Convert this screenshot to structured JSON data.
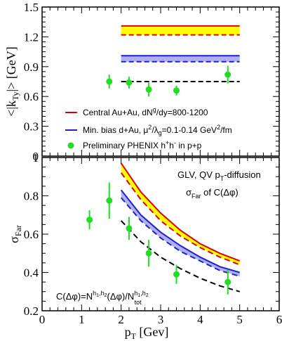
{
  "chart_data": [
    {
      "type": "line",
      "panel": "top",
      "ylabel": "<|kTy|> [GeV]",
      "ylim": [
        0,
        1.5
      ],
      "xlim": [
        0,
        6
      ],
      "yticks": [
        "0",
        "0.3",
        "0.6",
        "0.9",
        "1.2",
        "1.5"
      ],
      "legend": [
        {
          "name": "central",
          "text": "Central Au+Au, dN^g/dy=800-1200",
          "color": "#e00000"
        },
        {
          "name": "minbias",
          "text": "Min. bias d+Au, μ²/λg=0.1-0.14 GeV²/fm",
          "color": "#2020d0"
        },
        {
          "name": "phenix",
          "text": "Preliminary PHENIX h+h- in p+p",
          "color": "#22dd22"
        }
      ],
      "bands": [
        {
          "name": "central-band",
          "x": [
            2,
            5
          ],
          "y_low": 1.22,
          "y_high": 1.31,
          "fill": "#ffff00",
          "line": "#e00000",
          "dashed_y": 1.22
        },
        {
          "name": "minbias-band",
          "x": [
            2,
            5
          ],
          "y_low": 0.95,
          "y_high": 1.01,
          "fill": "#b0b0f0",
          "line": "#2020d0",
          "dashed_y": 0.95
        }
      ],
      "pp_line": {
        "x": [
          2,
          5
        ],
        "y": 0.75,
        "color": "#000000"
      },
      "points": [
        {
          "x": 1.7,
          "y": 0.75,
          "err": 0.07
        },
        {
          "x": 2.2,
          "y": 0.74,
          "err": 0.06
        },
        {
          "x": 2.7,
          "y": 0.67,
          "err": 0.07
        },
        {
          "x": 3.4,
          "y": 0.66,
          "err": 0.05
        },
        {
          "x": 4.7,
          "y": 0.82,
          "err": 0.09
        }
      ]
    },
    {
      "type": "line",
      "panel": "bottom",
      "xlabel": "pT [Gev]",
      "ylabel": "σFar",
      "ylim": [
        0.2,
        1.0
      ],
      "xlim": [
        0,
        6
      ],
      "xticks": [
        "0",
        "1",
        "2",
        "3",
        "4",
        "5",
        "6"
      ],
      "yticks": [
        "0.2",
        "0.4",
        "0.6",
        "0.8",
        "1"
      ],
      "annotations": {
        "line1": "GLV, QV pT-diffusion",
        "line2": "σFar of C(Δφ)",
        "formula": "C(Δφ)=N^h1,h2(Δφ)/N^h1,h2 tot"
      },
      "curves": [
        {
          "name": "central-solid",
          "color": "#e00000",
          "dash": false,
          "x": [
            2.0,
            2.5,
            3.0,
            3.5,
            4.0,
            4.5,
            5.0
          ],
          "y": [
            0.97,
            0.82,
            0.71,
            0.62,
            0.55,
            0.5,
            0.46
          ]
        },
        {
          "name": "central-dashed",
          "color": "#e00000",
          "dash": true,
          "x": [
            2.0,
            2.5,
            3.0,
            3.5,
            4.0,
            4.5,
            5.0
          ],
          "y": [
            0.92,
            0.78,
            0.67,
            0.59,
            0.53,
            0.48,
            0.44
          ]
        },
        {
          "name": "minbias-solid",
          "color": "#2020d0",
          "dash": false,
          "x": [
            2.0,
            2.5,
            3.0,
            3.5,
            4.0,
            4.5,
            5.0
          ],
          "y": [
            0.83,
            0.7,
            0.61,
            0.54,
            0.48,
            0.43,
            0.4
          ]
        },
        {
          "name": "minbias-dashed",
          "color": "#2020d0",
          "dash": true,
          "x": [
            2.0,
            2.5,
            3.0,
            3.5,
            4.0,
            4.5,
            5.0
          ],
          "y": [
            0.79,
            0.67,
            0.58,
            0.51,
            0.46,
            0.41,
            0.38
          ]
        },
        {
          "name": "pp-dashed",
          "color": "#000000",
          "dash": true,
          "x": [
            2.0,
            2.5,
            3.0,
            3.5,
            4.0,
            4.5,
            5.0
          ],
          "y": [
            0.67,
            0.56,
            0.48,
            0.42,
            0.37,
            0.33,
            0.3
          ]
        }
      ],
      "points": [
        {
          "x": 1.2,
          "y": 0.675,
          "err": 0.05
        },
        {
          "x": 1.7,
          "y": 0.775,
          "err": 0.095
        },
        {
          "x": 2.2,
          "y": 0.63,
          "err": 0.06
        },
        {
          "x": 2.7,
          "y": 0.5,
          "err": 0.07
        },
        {
          "x": 3.4,
          "y": 0.39,
          "err": 0.05
        },
        {
          "x": 4.7,
          "y": 0.35,
          "err": 0.065
        }
      ]
    }
  ]
}
